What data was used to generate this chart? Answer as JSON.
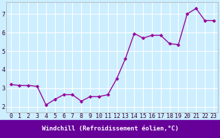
{
  "x": [
    0,
    1,
    2,
    3,
    4,
    5,
    6,
    7,
    8,
    9,
    10,
    11,
    12,
    13,
    14,
    15,
    16,
    17,
    18,
    19,
    20,
    21,
    22,
    23
  ],
  "y": [
    3.2,
    3.15,
    3.15,
    3.1,
    2.1,
    2.4,
    2.65,
    2.65,
    2.3,
    2.55,
    2.55,
    2.65,
    3.5,
    4.6,
    5.95,
    5.7,
    5.85,
    5.85,
    5.4,
    5.35,
    7.0,
    7.3,
    6.65,
    6.65
  ],
  "line_color": "#990099",
  "marker": "D",
  "marker_size": 2.5,
  "bg_color": "#cceeff",
  "grid_color": "#ffffff",
  "xlabel": "Windchill (Refroidissement éolien,°C)",
  "xlabel_color": "#ffffff",
  "xlabel_bg": "#660099",
  "ylabel_ticks": [
    2,
    3,
    4,
    5,
    6,
    7
  ],
  "xlim": [
    -0.5,
    23.5
  ],
  "ylim": [
    1.7,
    7.65
  ],
  "tick_fontsize": 6,
  "xlabel_fontsize": 6.5,
  "title_color": "#330033"
}
